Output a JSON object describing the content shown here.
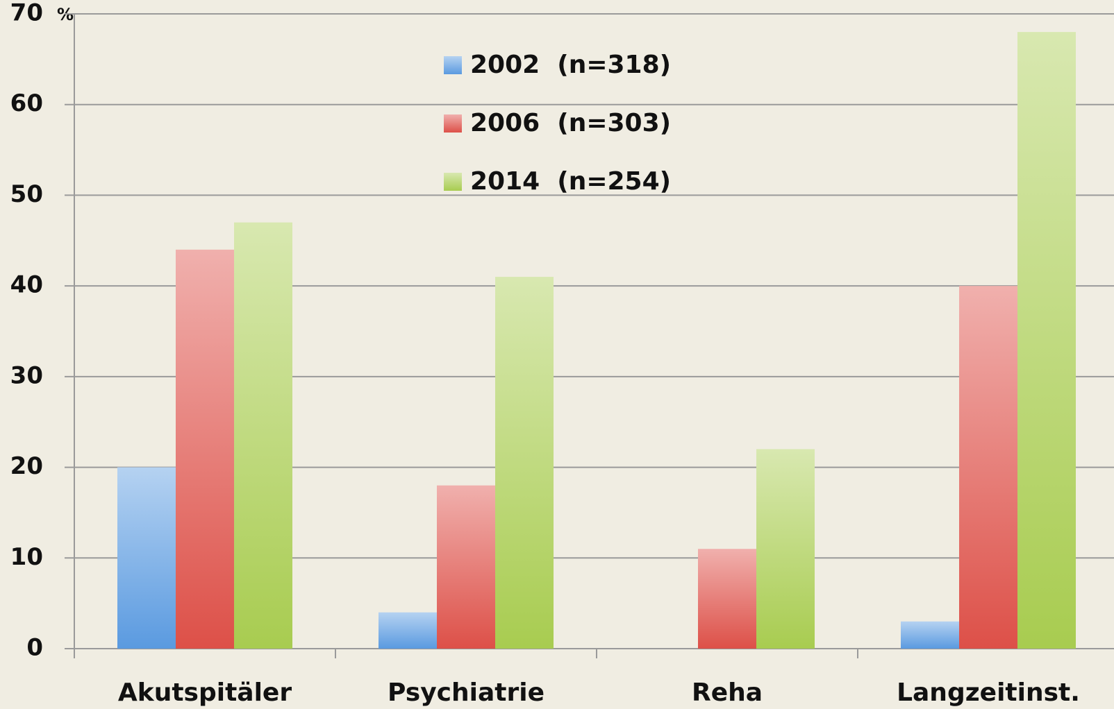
{
  "chart_data": {
    "type": "bar",
    "categories": [
      "Akutspitäler",
      "Psychiatrie",
      "Reha",
      "Langzeitinst."
    ],
    "series": [
      {
        "name": "2002  (n=318)",
        "color": "#5a9ae0",
        "values": [
          20,
          4,
          0,
          3
        ]
      },
      {
        "name": "2006  (n=303)",
        "color": "#dd5048",
        "values": [
          44,
          18,
          11,
          40
        ]
      },
      {
        "name": "2014  (n=254)",
        "color": "#a8cc50",
        "values": [
          47,
          41,
          22,
          68
        ]
      }
    ],
    "y_unit": "%",
    "ylim": [
      0,
      70
    ],
    "yticks": [
      0,
      10,
      20,
      30,
      40,
      50,
      60,
      70
    ],
    "grid": true,
    "legend": "top"
  }
}
